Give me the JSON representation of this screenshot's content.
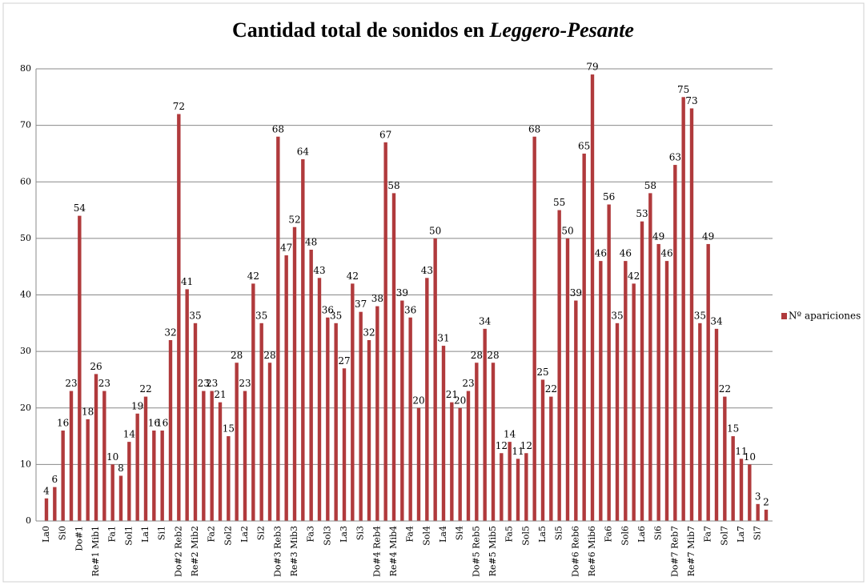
{
  "chart_data": {
    "type": "bar",
    "title": "Cantidad total de sonidos en ",
    "title_italic": "Leggero-Pesante",
    "categories": [
      "La0",
      null,
      "Si0",
      null,
      "Do#1",
      null,
      "Re#1 Mib1",
      null,
      "Fa1",
      null,
      "Sol1",
      null,
      "La1",
      null,
      "Si1",
      null,
      "Do#2 Reb2",
      null,
      "Re#2 Mib2",
      null,
      "Fa2",
      null,
      "Sol2",
      null,
      "La2",
      null,
      "Si2",
      null,
      "Do#3 Reb3",
      null,
      "Re#3 Mib3",
      null,
      "Fa3",
      null,
      "Sol3",
      null,
      "La3",
      null,
      "Si3",
      null,
      "Do#4 Reb4",
      null,
      "Re#4 Mib4",
      null,
      "Fa4",
      null,
      "Sol4",
      null,
      "La4",
      null,
      "Si4",
      null,
      "Do#5 Reb5",
      null,
      "Re#5 Mib5",
      null,
      "Fa5",
      null,
      "Sol5",
      null,
      "La5",
      null,
      "Si5",
      null,
      "Do#6 Reb6",
      null,
      "Re#6 Mib6",
      null,
      "Fa6",
      null,
      "Sol6",
      null,
      "La6",
      null,
      "Si6",
      null,
      "Do#7 Reb7",
      null,
      "Re#7 Mib7",
      null,
      "Fa7",
      null,
      "Sol7",
      null,
      "La7",
      null,
      "Si7",
      null
    ],
    "series": [
      {
        "name": "Nº apariciones",
        "color": "#b03a3c",
        "values": [
          4,
          6,
          16,
          23,
          54,
          18,
          26,
          23,
          10,
          8,
          14,
          19,
          22,
          16,
          16,
          32,
          72,
          41,
          35,
          23,
          23,
          21,
          15,
          28,
          23,
          42,
          35,
          28,
          68,
          47,
          52,
          64,
          48,
          43,
          36,
          35,
          27,
          42,
          37,
          32,
          38,
          67,
          58,
          39,
          36,
          20,
          43,
          50,
          31,
          21,
          20,
          23,
          28,
          34,
          28,
          12,
          14,
          11,
          12,
          68,
          25,
          22,
          55,
          50,
          39,
          65,
          79,
          46,
          56,
          35,
          46,
          42,
          53,
          58,
          49,
          46,
          63,
          75,
          73,
          35,
          49,
          34,
          22,
          15,
          11,
          10,
          3,
          2
        ]
      }
    ],
    "ylim": [
      0,
      80
    ],
    "yticks": [
      0,
      10,
      20,
      30,
      40,
      50,
      60,
      70,
      80
    ],
    "grid": true,
    "legend": "right"
  }
}
